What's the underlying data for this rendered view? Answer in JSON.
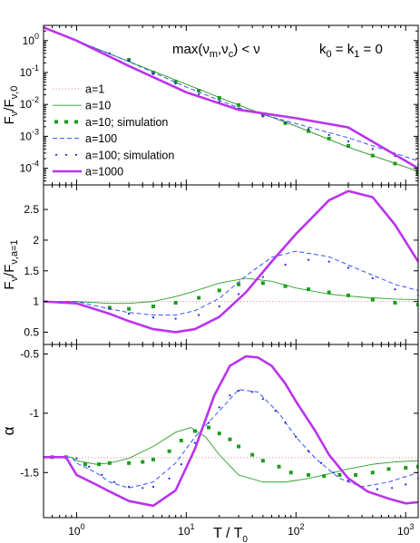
{
  "chart_data": [
    {
      "type": "line",
      "panel": "top",
      "ylabel": "F_ν/F_ν,0",
      "ylog": true,
      "ylim": [
        3e-05,
        3
      ],
      "annotations": [
        "max(ν_m,ν_c) < ν",
        "k_0 = k_1 = 0"
      ],
      "yticks": [
        {
          "v": 1,
          "label": "10^0"
        },
        {
          "v": 0.1,
          "label": "10^-1"
        },
        {
          "v": 0.01,
          "label": "10^-2"
        },
        {
          "v": 0.001,
          "label": "10^-3"
        },
        {
          "v": 0.0001,
          "label": "10^-4"
        }
      ],
      "series": [
        {
          "name": "a=1",
          "style": "dotted",
          "color": "#d98080",
          "x": [
            0.5,
            1,
            3,
            10,
            30,
            100,
            300,
            1300
          ],
          "values": [
            2.6,
            1.0,
            0.22,
            0.043,
            0.0095,
            0.002,
            0.00045,
            7.5e-05
          ]
        },
        {
          "name": "a=10",
          "style": "thin",
          "color": "#2ca02c",
          "x": [
            0.5,
            1,
            3,
            10,
            30,
            100,
            300,
            1300
          ],
          "values": [
            2.6,
            1.0,
            0.22,
            0.043,
            0.0095,
            0.0021,
            0.00046,
            8e-05
          ]
        },
        {
          "name": "a=10; simulation",
          "style": "squares",
          "color": "#1a9e1a",
          "x": [
            3,
            5,
            8,
            13,
            20,
            30,
            50,
            80,
            130,
            200,
            300,
            500,
            800,
            1300
          ],
          "values": [
            0.25,
            0.1,
            0.052,
            0.027,
            0.016,
            0.0096,
            0.0048,
            0.0026,
            0.00145,
            0.00085,
            0.0005,
            0.00025,
            0.00014,
            7e-05
          ]
        },
        {
          "name": "a=100",
          "style": "dashed",
          "color": "#3355ff",
          "x": [
            0.5,
            1,
            3,
            10,
            30,
            100,
            300,
            1300
          ],
          "values": [
            2.6,
            1.0,
            0.22,
            0.035,
            0.0078,
            0.0025,
            0.0009,
            0.00017
          ]
        },
        {
          "name": "a=100; simulation",
          "style": "dots",
          "color": "#2222dd",
          "x": [
            2,
            3,
            5,
            8,
            13,
            20,
            30,
            50,
            80,
            130,
            200,
            300,
            500,
            800,
            1300
          ],
          "values": [
            0.4,
            0.24,
            0.09,
            0.045,
            0.021,
            0.012,
            0.0075,
            0.0042,
            0.0027,
            0.0017,
            0.0011,
            0.0007,
            0.0004,
            0.00024,
            0.00013
          ]
        },
        {
          "name": "a=1000",
          "style": "thick",
          "color": "#bb33ee",
          "x": [
            0.5,
            1,
            3,
            10,
            30,
            100,
            300,
            1300
          ],
          "values": [
            2.6,
            1.0,
            0.16,
            0.024,
            0.0068,
            0.0037,
            0.0019,
            0.0001
          ]
        }
      ]
    },
    {
      "type": "line",
      "panel": "middle",
      "ylabel": "F_ν/F_ν,a=1",
      "ylim": [
        0.3,
        2.9
      ],
      "yticks": [
        {
          "v": 0.5,
          "label": "0.5"
        },
        {
          "v": 1,
          "label": "1"
        },
        {
          "v": 1.5,
          "label": "1.5"
        },
        {
          "v": 2,
          "label": "2"
        },
        {
          "v": 2.5,
          "label": "2.5"
        }
      ],
      "series": [
        {
          "name": "a=1",
          "style": "dotted",
          "color": "#d98080",
          "x": [
            0.5,
            1300
          ],
          "values": [
            1,
            1
          ]
        },
        {
          "name": "a=10",
          "style": "thin",
          "color": "#2ca02c",
          "x": [
            0.5,
            1,
            2,
            3,
            5,
            8,
            12,
            20,
            35,
            60,
            100,
            200,
            400,
            800,
            1300
          ],
          "values": [
            1,
            1,
            0.97,
            0.97,
            1.0,
            1.08,
            1.17,
            1.3,
            1.38,
            1.33,
            1.22,
            1.12,
            1.07,
            1.04,
            1.03
          ]
        },
        {
          "name": "a=10; simulation",
          "style": "squares",
          "color": "#1a9e1a",
          "x": [
            2,
            3,
            5,
            8,
            13,
            20,
            30,
            50,
            80,
            130,
            200,
            300,
            500,
            800,
            1300
          ],
          "values": [
            0.9,
            0.88,
            0.92,
            0.98,
            1.06,
            1.18,
            1.28,
            1.3,
            1.25,
            1.2,
            1.15,
            1.1,
            1.03,
            0.98,
            0.95
          ]
        },
        {
          "name": "a=100",
          "style": "dashed",
          "color": "#3355ff",
          "x": [
            0.5,
            1,
            2,
            3,
            5,
            8,
            12,
            20,
            35,
            60,
            100,
            200,
            400,
            800,
            1300
          ],
          "values": [
            1,
            1,
            0.88,
            0.82,
            0.78,
            0.78,
            0.85,
            1.05,
            1.42,
            1.72,
            1.82,
            1.73,
            1.5,
            1.28,
            1.18
          ]
        },
        {
          "name": "a=100; simulation",
          "style": "dots",
          "color": "#2222dd",
          "x": [
            2,
            3,
            5,
            8,
            13,
            20,
            30,
            50,
            80,
            130,
            200,
            300,
            500,
            800,
            1300
          ],
          "values": [
            0.88,
            0.8,
            0.74,
            0.72,
            0.78,
            0.92,
            1.12,
            1.4,
            1.6,
            1.68,
            1.65,
            1.55,
            1.38,
            1.2,
            1.1
          ]
        },
        {
          "name": "a=1000",
          "style": "thick",
          "color": "#bb33ee",
          "x": [
            0.5,
            1,
            2,
            3,
            5,
            8,
            12,
            20,
            35,
            60,
            100,
            200,
            300,
            500,
            800,
            1300
          ],
          "values": [
            1,
            0.97,
            0.8,
            0.68,
            0.55,
            0.5,
            0.55,
            0.75,
            1.15,
            1.65,
            2.1,
            2.65,
            2.8,
            2.7,
            2.25,
            1.65
          ]
        }
      ]
    },
    {
      "type": "line",
      "panel": "bottom",
      "ylabel": "α",
      "xlabel": "T / T_0",
      "xlog": true,
      "xlim": [
        0.5,
        1300
      ],
      "ylim": [
        -1.88,
        -0.42
      ],
      "xticks": [
        {
          "v": 1,
          "label": "10^0"
        },
        {
          "v": 10,
          "label": "10^1"
        },
        {
          "v": 100,
          "label": "10^2"
        },
        {
          "v": 1000,
          "label": "10^3"
        }
      ],
      "yticks": [
        {
          "v": -0.5,
          "label": "-0.5"
        },
        {
          "v": -1,
          "label": "-1"
        },
        {
          "v": -1.5,
          "label": "-1.5"
        }
      ],
      "series": [
        {
          "name": "a=1",
          "style": "dotted",
          "color": "#d98080",
          "x": [
            0.5,
            1300
          ],
          "values": [
            -1.375,
            -1.375
          ]
        },
        {
          "name": "a=10",
          "style": "thin",
          "color": "#2ca02c",
          "x": [
            0.5,
            0.9,
            1,
            1.5,
            2,
            3,
            5,
            8,
            11,
            15,
            20,
            30,
            50,
            80,
            130,
            200,
            300,
            500,
            800,
            1300
          ],
          "values": [
            -1.37,
            -1.37,
            -1.4,
            -1.43,
            -1.42,
            -1.38,
            -1.28,
            -1.16,
            -1.12,
            -1.2,
            -1.35,
            -1.52,
            -1.58,
            -1.58,
            -1.55,
            -1.51,
            -1.47,
            -1.43,
            -1.41,
            -1.4
          ]
        },
        {
          "name": "a=10; simulation",
          "style": "squares",
          "color": "#1a9e1a",
          "x": [
            0.6,
            0.8,
            1.2,
            1.6,
            2,
            3,
            4,
            5,
            7,
            9,
            12,
            16,
            20,
            25,
            30,
            40,
            50,
            70,
            90,
            130,
            180,
            250,
            350,
            500,
            700,
            1000,
            1300
          ],
          "values": [
            -1.37,
            -1.37,
            -1.43,
            -1.43,
            -1.42,
            -1.42,
            -1.41,
            -1.39,
            -1.32,
            -1.23,
            -1.15,
            -1.12,
            -1.17,
            -1.22,
            -1.28,
            -1.35,
            -1.4,
            -1.45,
            -1.5,
            -1.52,
            -1.53,
            -1.52,
            -1.52,
            -1.5,
            -1.47,
            -1.46,
            -1.45
          ]
        },
        {
          "name": "a=100",
          "style": "dashed",
          "color": "#3355ff",
          "x": [
            0.5,
            0.9,
            1,
            1.5,
            2,
            3,
            5,
            8,
            12,
            20,
            30,
            45,
            70,
            100,
            150,
            250,
            400,
            700,
            1300
          ],
          "values": [
            -1.37,
            -1.37,
            -1.42,
            -1.5,
            -1.58,
            -1.63,
            -1.58,
            -1.42,
            -1.2,
            -0.98,
            -0.8,
            -0.82,
            -1.0,
            -1.2,
            -1.38,
            -1.55,
            -1.62,
            -1.58,
            -1.5
          ]
        },
        {
          "name": "a=100; simulation",
          "style": "dots",
          "color": "#2222dd",
          "x": [
            1,
            1.3,
            1.7,
            2.2,
            3,
            4,
            5,
            7,
            9,
            12,
            16,
            20,
            25,
            30,
            40,
            50,
            65,
            80,
            100,
            130,
            170,
            220,
            300,
            400,
            550,
            750,
            1000,
            1300
          ],
          "values": [
            -1.38,
            -1.45,
            -1.52,
            -1.58,
            -1.62,
            -1.63,
            -1.62,
            -1.55,
            -1.43,
            -1.25,
            -1.08,
            -0.95,
            -0.85,
            -0.81,
            -0.82,
            -0.88,
            -0.98,
            -1.08,
            -1.2,
            -1.32,
            -1.42,
            -1.5,
            -1.57,
            -1.62,
            -1.64,
            -1.63,
            -1.6,
            -1.55
          ]
        },
        {
          "name": "a=1000",
          "style": "thick",
          "color": "#bb33ee",
          "x": [
            0.5,
            0.8,
            1,
            1.5,
            2,
            3,
            5,
            8,
            12,
            18,
            25,
            35,
            45,
            60,
            80,
            100,
            150,
            200,
            300,
            450,
            700,
            1000,
            1300
          ],
          "values": [
            -1.37,
            -1.37,
            -1.52,
            -1.6,
            -1.66,
            -1.74,
            -1.78,
            -1.65,
            -1.3,
            -0.85,
            -0.6,
            -0.52,
            -0.53,
            -0.6,
            -0.75,
            -0.9,
            -1.15,
            -1.35,
            -1.55,
            -1.66,
            -1.72,
            -1.76,
            -1.75
          ]
        }
      ]
    }
  ],
  "legend": [
    "a=1",
    "a=10",
    "a=10; simulation",
    "a=100",
    "a=100; simulation",
    "a=1000"
  ]
}
